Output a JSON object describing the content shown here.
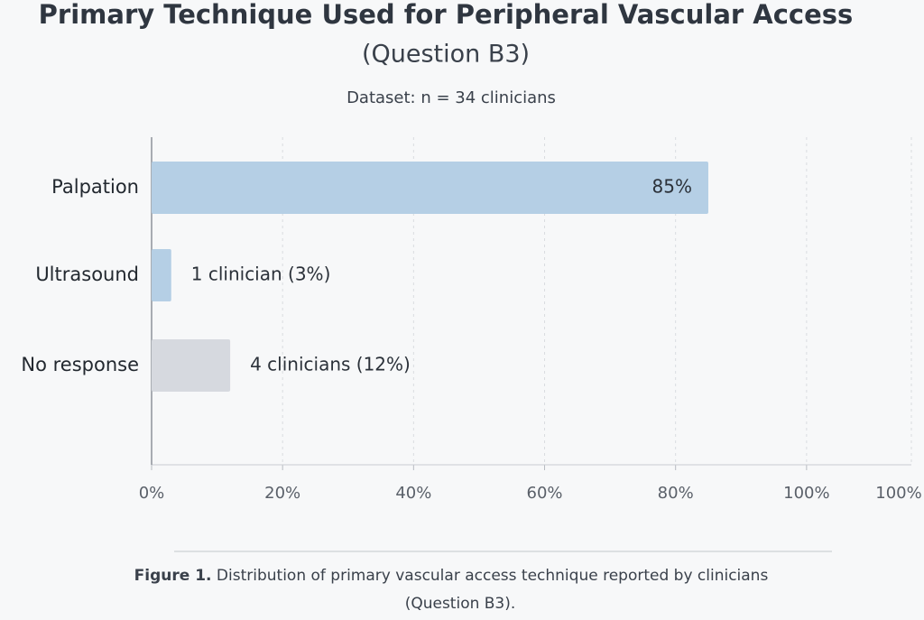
{
  "chart_data": {
    "type": "barh",
    "title": "Primary Technique Used for Peripheral Vascular Access",
    "subtitle": "(Question B3)",
    "dataset_note": "Dataset: n = 34 clinicians",
    "categories": [
      "Palpation",
      "Ultrasound",
      "No response"
    ],
    "values": [
      85,
      3,
      12
    ],
    "value_labels": [
      "85%",
      "1 clinician (3%)",
      "4 clinicians (12%)"
    ],
    "colors": [
      "#b5cfe5",
      "#b5cfe5",
      "#d6d9df"
    ],
    "xlim": [
      0,
      116
    ],
    "xticks": [
      {
        "value": 0,
        "label": "0%"
      },
      {
        "value": 20,
        "label": "20%"
      },
      {
        "value": 40,
        "label": "40%"
      },
      {
        "value": 60,
        "label": "60%"
      },
      {
        "value": 80,
        "label": "80%"
      },
      {
        "value": 100,
        "label": "100%"
      }
    ],
    "axis_end_label": "100%",
    "grid": true,
    "caption_label": "Figure 1.",
    "caption_text": "Distribution of primary vascular access technique reported by clinicians (Question B3)."
  }
}
